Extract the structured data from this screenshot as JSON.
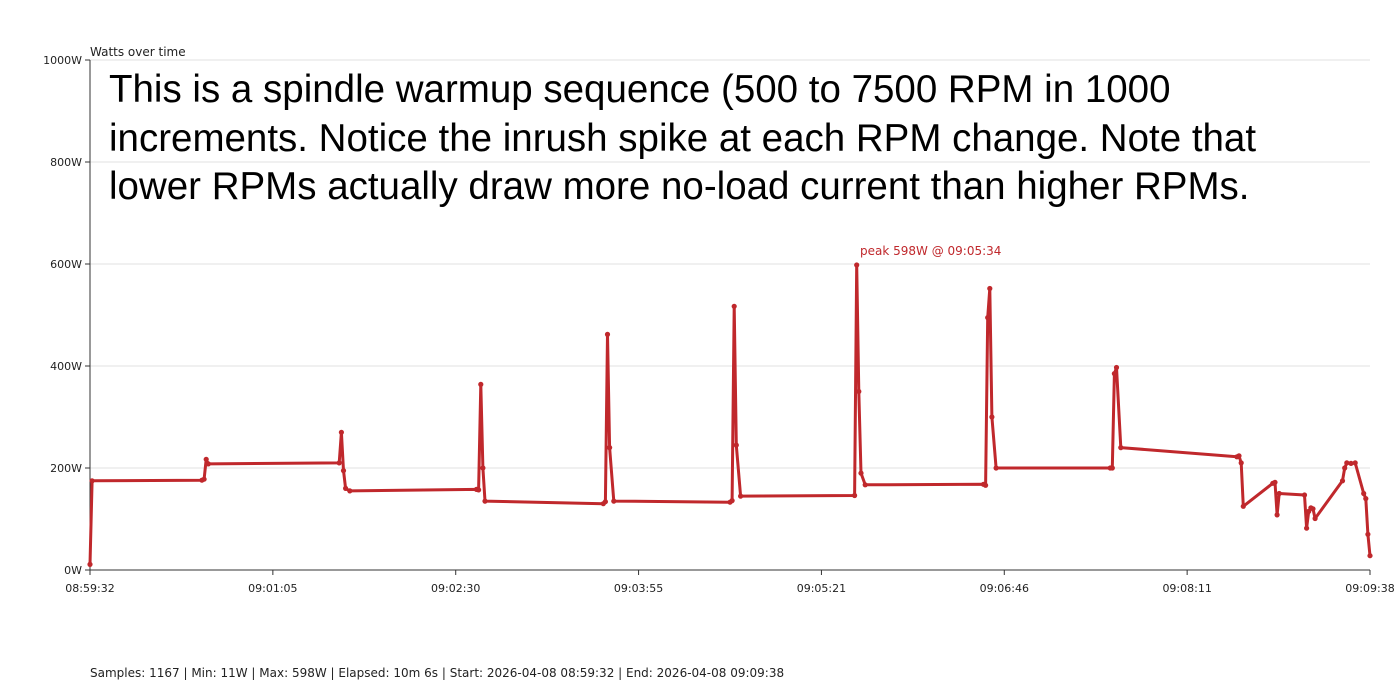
{
  "chart_data": {
    "type": "line",
    "title": "Watts over time",
    "ylim": [
      0,
      1000
    ],
    "y_ticks": [
      0,
      200,
      400,
      600,
      800,
      1000
    ],
    "y_tick_labels": [
      "0W",
      "200W",
      "400W",
      "600W",
      "800W",
      "1000W"
    ],
    "x_range": [
      "08:59:32",
      "09:09:38"
    ],
    "x_tick_labels": [
      "08:59:32",
      "09:01:05",
      "09:02:30",
      "09:03:55",
      "09:05:21",
      "09:06:46",
      "09:08:11",
      "09:09:38"
    ],
    "grid": "horizontal",
    "line_color": "#c0282c",
    "series": [
      {
        "x": [
          "08:59:32",
          "08:59:33",
          "09:00:25",
          "09:00:26",
          "09:00:27",
          "09:00:28",
          "09:01:30",
          "09:01:31",
          "09:01:32",
          "09:01:33",
          "09:01:35",
          "09:02:35",
          "09:02:36",
          "09:02:37",
          "09:02:38",
          "09:02:39",
          "09:03:35",
          "09:03:36",
          "09:03:37",
          "09:03:38",
          "09:03:40",
          "09:04:35",
          "09:04:36",
          "09:04:37",
          "09:04:38",
          "09:04:40",
          "09:05:34",
          "09:05:35",
          "09:05:36",
          "09:05:37",
          "09:05:39",
          "09:06:35",
          "09:06:36",
          "09:06:37",
          "09:06:38",
          "09:06:39",
          "09:06:41",
          "09:07:35",
          "09:07:36",
          "09:07:37",
          "09:07:38",
          "09:07:40",
          "09:08:35",
          "09:08:36",
          "09:08:37",
          "09:08:38",
          "09:08:52",
          "09:08:53",
          "09:08:54",
          "09:08:55",
          "09:09:07",
          "09:09:08",
          "09:09:09",
          "09:09:10",
          "09:09:11",
          "09:09:12",
          "09:09:25",
          "09:09:26",
          "09:09:27",
          "09:09:29",
          "09:09:31",
          "09:09:35",
          "09:09:36",
          "09:09:37",
          "09:09:38"
        ],
        "y": [
          11,
          175,
          176,
          178,
          217,
          208,
          210,
          270,
          195,
          160,
          155,
          158,
          157,
          364,
          200,
          135,
          130,
          134,
          462,
          240,
          135,
          133,
          136,
          517,
          245,
          145,
          146,
          598,
          350,
          190,
          167,
          168,
          166,
          495,
          552,
          300,
          200,
          200,
          200,
          385,
          397,
          240,
          222,
          224,
          210,
          125,
          170,
          172,
          108,
          150,
          147,
          82,
          115,
          122,
          120,
          101,
          175,
          200,
          210,
          209,
          210,
          150,
          140,
          70,
          28
        ]
      }
    ],
    "peak_label": "peak 598W @ 09:05:34"
  },
  "annotation": {
    "line1": "This is a spindle warmup sequence (500 to 7500 RPM in 1000",
    "line2": "increments. Notice the inrush spike at each RPM change. Note that",
    "line3": "lower RPMs actually draw more no-load current than higher RPMs."
  },
  "stats_text": "Samples: 1167 | Min: 11W | Max: 598W | Elapsed: 10m 6s | Start: 2026-04-08 08:59:32 | End: 2026-04-08 09:09:38"
}
